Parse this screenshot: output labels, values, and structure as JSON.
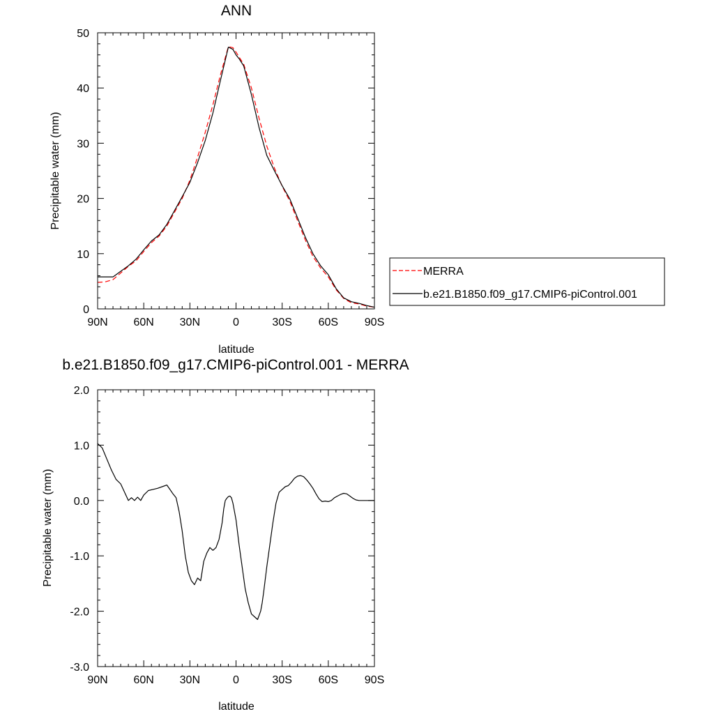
{
  "chart_data": [
    {
      "type": "line",
      "title": "ANN",
      "xlabel": "latitude",
      "ylabel": "Precipitable water (mm)",
      "xlim": [
        90,
        -90
      ],
      "ylim": [
        0,
        50
      ],
      "x_ticks": [
        {
          "value": 90,
          "label": "90N"
        },
        {
          "value": 60,
          "label": "60N"
        },
        {
          "value": 30,
          "label": "30N"
        },
        {
          "value": 0,
          "label": "0"
        },
        {
          "value": -30,
          "label": "30S"
        },
        {
          "value": -60,
          "label": "60S"
        },
        {
          "value": -90,
          "label": "90S"
        }
      ],
      "y_ticks": [
        {
          "value": 0,
          "label": "0"
        },
        {
          "value": 10,
          "label": "10"
        },
        {
          "value": 20,
          "label": "20"
        },
        {
          "value": 30,
          "label": "30"
        },
        {
          "value": 40,
          "label": "40"
        },
        {
          "value": 50,
          "label": "50"
        }
      ],
      "legend_position": "right",
      "series": [
        {
          "name": "MERRA",
          "color": "#ff0000",
          "dash": "dashed",
          "x": [
            90,
            85,
            80,
            75,
            70,
            65,
            60,
            55,
            50,
            45,
            40,
            35,
            30,
            25,
            20,
            15,
            10,
            5,
            2,
            0,
            -2,
            -5,
            -10,
            -15,
            -20,
            -25,
            -30,
            -35,
            -40,
            -45,
            -50,
            -55,
            -60,
            -65,
            -70,
            -75,
            -80,
            -85,
            -90
          ],
          "y": [
            4.8,
            4.9,
            5.3,
            6.5,
            7.7,
            8.7,
            10.4,
            12.0,
            13.2,
            15.0,
            17.5,
            20.0,
            23.3,
            27.5,
            32.0,
            37.0,
            42.5,
            47.5,
            47.3,
            46.5,
            45.6,
            44.3,
            40.0,
            34.5,
            29.5,
            25.5,
            22.2,
            19.5,
            16.0,
            12.5,
            9.5,
            7.4,
            5.8,
            3.5,
            1.9,
            1.1,
            0.9,
            0.5,
            0.3
          ]
        },
        {
          "name": "b.e21.B1850.f09_g17.CMIP6-piControl.001",
          "color": "#000000",
          "dash": "solid",
          "x": [
            90,
            85,
            80,
            75,
            70,
            65,
            60,
            55,
            50,
            45,
            40,
            35,
            30,
            25,
            20,
            15,
            10,
            5,
            2,
            0,
            -2,
            -5,
            -10,
            -15,
            -20,
            -25,
            -30,
            -35,
            -40,
            -45,
            -50,
            -55,
            -60,
            -65,
            -70,
            -75,
            -80,
            -85,
            -90
          ],
          "y": [
            5.8,
            5.8,
            5.8,
            6.8,
            7.8,
            9.0,
            10.7,
            12.3,
            13.4,
            15.3,
            17.8,
            20.3,
            22.9,
            26.5,
            30.5,
            35.5,
            41.5,
            47.4,
            47.0,
            46.0,
            45.3,
            44.0,
            38.8,
            32.8,
            27.8,
            25.0,
            22.3,
            19.9,
            16.5,
            13.0,
            10.0,
            7.8,
            6.2,
            3.7,
            2.0,
            1.3,
            1.0,
            0.6,
            0.3
          ]
        }
      ]
    },
    {
      "type": "line",
      "title": "b.e21.B1850.f09_g17.CMIP6-piControl.001 - MERRA",
      "xlabel": "latitude",
      "ylabel": "Precipitable water (mm)",
      "xlim": [
        90,
        -90
      ],
      "ylim": [
        -3.0,
        2.0
      ],
      "x_ticks": [
        {
          "value": 90,
          "label": "90N"
        },
        {
          "value": 60,
          "label": "60N"
        },
        {
          "value": 30,
          "label": "30N"
        },
        {
          "value": 0,
          "label": "0"
        },
        {
          "value": -30,
          "label": "30S"
        },
        {
          "value": -60,
          "label": "60S"
        },
        {
          "value": -90,
          "label": "90S"
        }
      ],
      "y_ticks": [
        {
          "value": -3.0,
          "label": "-3.0"
        },
        {
          "value": -2.0,
          "label": "-2.0"
        },
        {
          "value": -1.0,
          "label": "-1.0"
        },
        {
          "value": 0.0,
          "label": "0.0"
        },
        {
          "value": 1.0,
          "label": "1.0"
        },
        {
          "value": 2.0,
          "label": "2.0"
        }
      ],
      "series": [
        {
          "color": "#000000",
          "dash": "solid",
          "x": [
            90,
            87,
            84,
            81,
            78,
            75,
            72,
            70,
            68,
            66,
            64,
            62,
            60,
            57,
            54,
            51,
            48,
            45,
            43,
            41,
            39,
            37,
            35,
            33,
            31,
            29,
            27,
            25,
            23,
            21,
            19,
            17,
            15,
            13,
            11,
            9,
            8,
            7,
            6,
            5,
            4,
            3,
            2,
            1,
            0,
            -2,
            -4,
            -6,
            -8,
            -10,
            -12,
            -14,
            -16,
            -17,
            -18,
            -20,
            -22,
            -24,
            -26,
            -28,
            -30,
            -32,
            -34,
            -36,
            -38,
            -40,
            -42,
            -44,
            -46,
            -48,
            -50,
            -52,
            -54,
            -56,
            -58,
            -60,
            -62,
            -64,
            -66,
            -68,
            -70,
            -72,
            -74,
            -76,
            -78,
            -80,
            -82,
            -84,
            -86,
            -88,
            -90
          ],
          "y": [
            1.03,
            0.95,
            0.75,
            0.55,
            0.38,
            0.3,
            0.12,
            0.0,
            0.05,
            0.0,
            0.06,
            0.0,
            0.1,
            0.18,
            0.2,
            0.22,
            0.25,
            0.28,
            0.2,
            0.12,
            0.05,
            -0.2,
            -0.55,
            -1.0,
            -1.3,
            -1.45,
            -1.52,
            -1.4,
            -1.45,
            -1.1,
            -0.95,
            -0.85,
            -0.9,
            -0.85,
            -0.7,
            -0.4,
            -0.15,
            0.0,
            0.04,
            0.07,
            0.08,
            0.05,
            -0.05,
            -0.2,
            -0.35,
            -0.8,
            -1.2,
            -1.6,
            -1.85,
            -2.05,
            -2.1,
            -2.15,
            -2.0,
            -1.85,
            -1.65,
            -1.2,
            -0.8,
            -0.4,
            -0.05,
            0.15,
            0.2,
            0.25,
            0.27,
            0.33,
            0.4,
            0.44,
            0.45,
            0.43,
            0.37,
            0.3,
            0.22,
            0.12,
            0.03,
            -0.02,
            -0.01,
            -0.02,
            0.0,
            0.05,
            0.08,
            0.11,
            0.13,
            0.12,
            0.08,
            0.04,
            0.01,
            0.0,
            0.0,
            0.0,
            0.0,
            0.0,
            0.0
          ]
        }
      ]
    }
  ]
}
